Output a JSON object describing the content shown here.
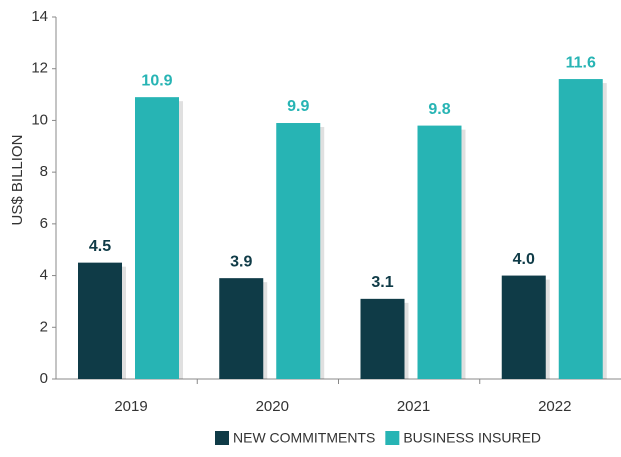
{
  "chart_data": {
    "type": "bar",
    "y_label": "US$ BILLION",
    "categories": [
      "2019",
      "2020",
      "2021",
      "2022"
    ],
    "series": [
      {
        "name": "NEW COMMITMENTS",
        "color": "#0f3b47",
        "values": [
          4.5,
          3.9,
          3.1,
          4.0
        ],
        "value_labels": [
          "4.5",
          "3.9",
          "3.1",
          "4.0"
        ]
      },
      {
        "name": "BUSINESS INSURED",
        "color": "#27b4b4",
        "values": [
          10.9,
          9.9,
          9.8,
          11.6
        ],
        "value_labels": [
          "10.9",
          "9.9",
          "9.8",
          "11.6"
        ]
      }
    ],
    "ylim": [
      0,
      14
    ],
    "yticks": [
      0,
      2,
      4,
      6,
      8,
      10,
      12,
      14
    ],
    "grid": false,
    "legend": "bottom"
  }
}
